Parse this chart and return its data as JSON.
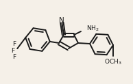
{
  "bg_color": "#f5f0e8",
  "bond_color": "#1a1a1a",
  "text_color": "#1a1a1a",
  "line_width": 1.4,
  "font_size": 6.5,
  "figsize": [
    1.94,
    1.23
  ],
  "dpi": 100,
  "xlim": [
    0,
    194
  ],
  "ylim": [
    0,
    123
  ]
}
